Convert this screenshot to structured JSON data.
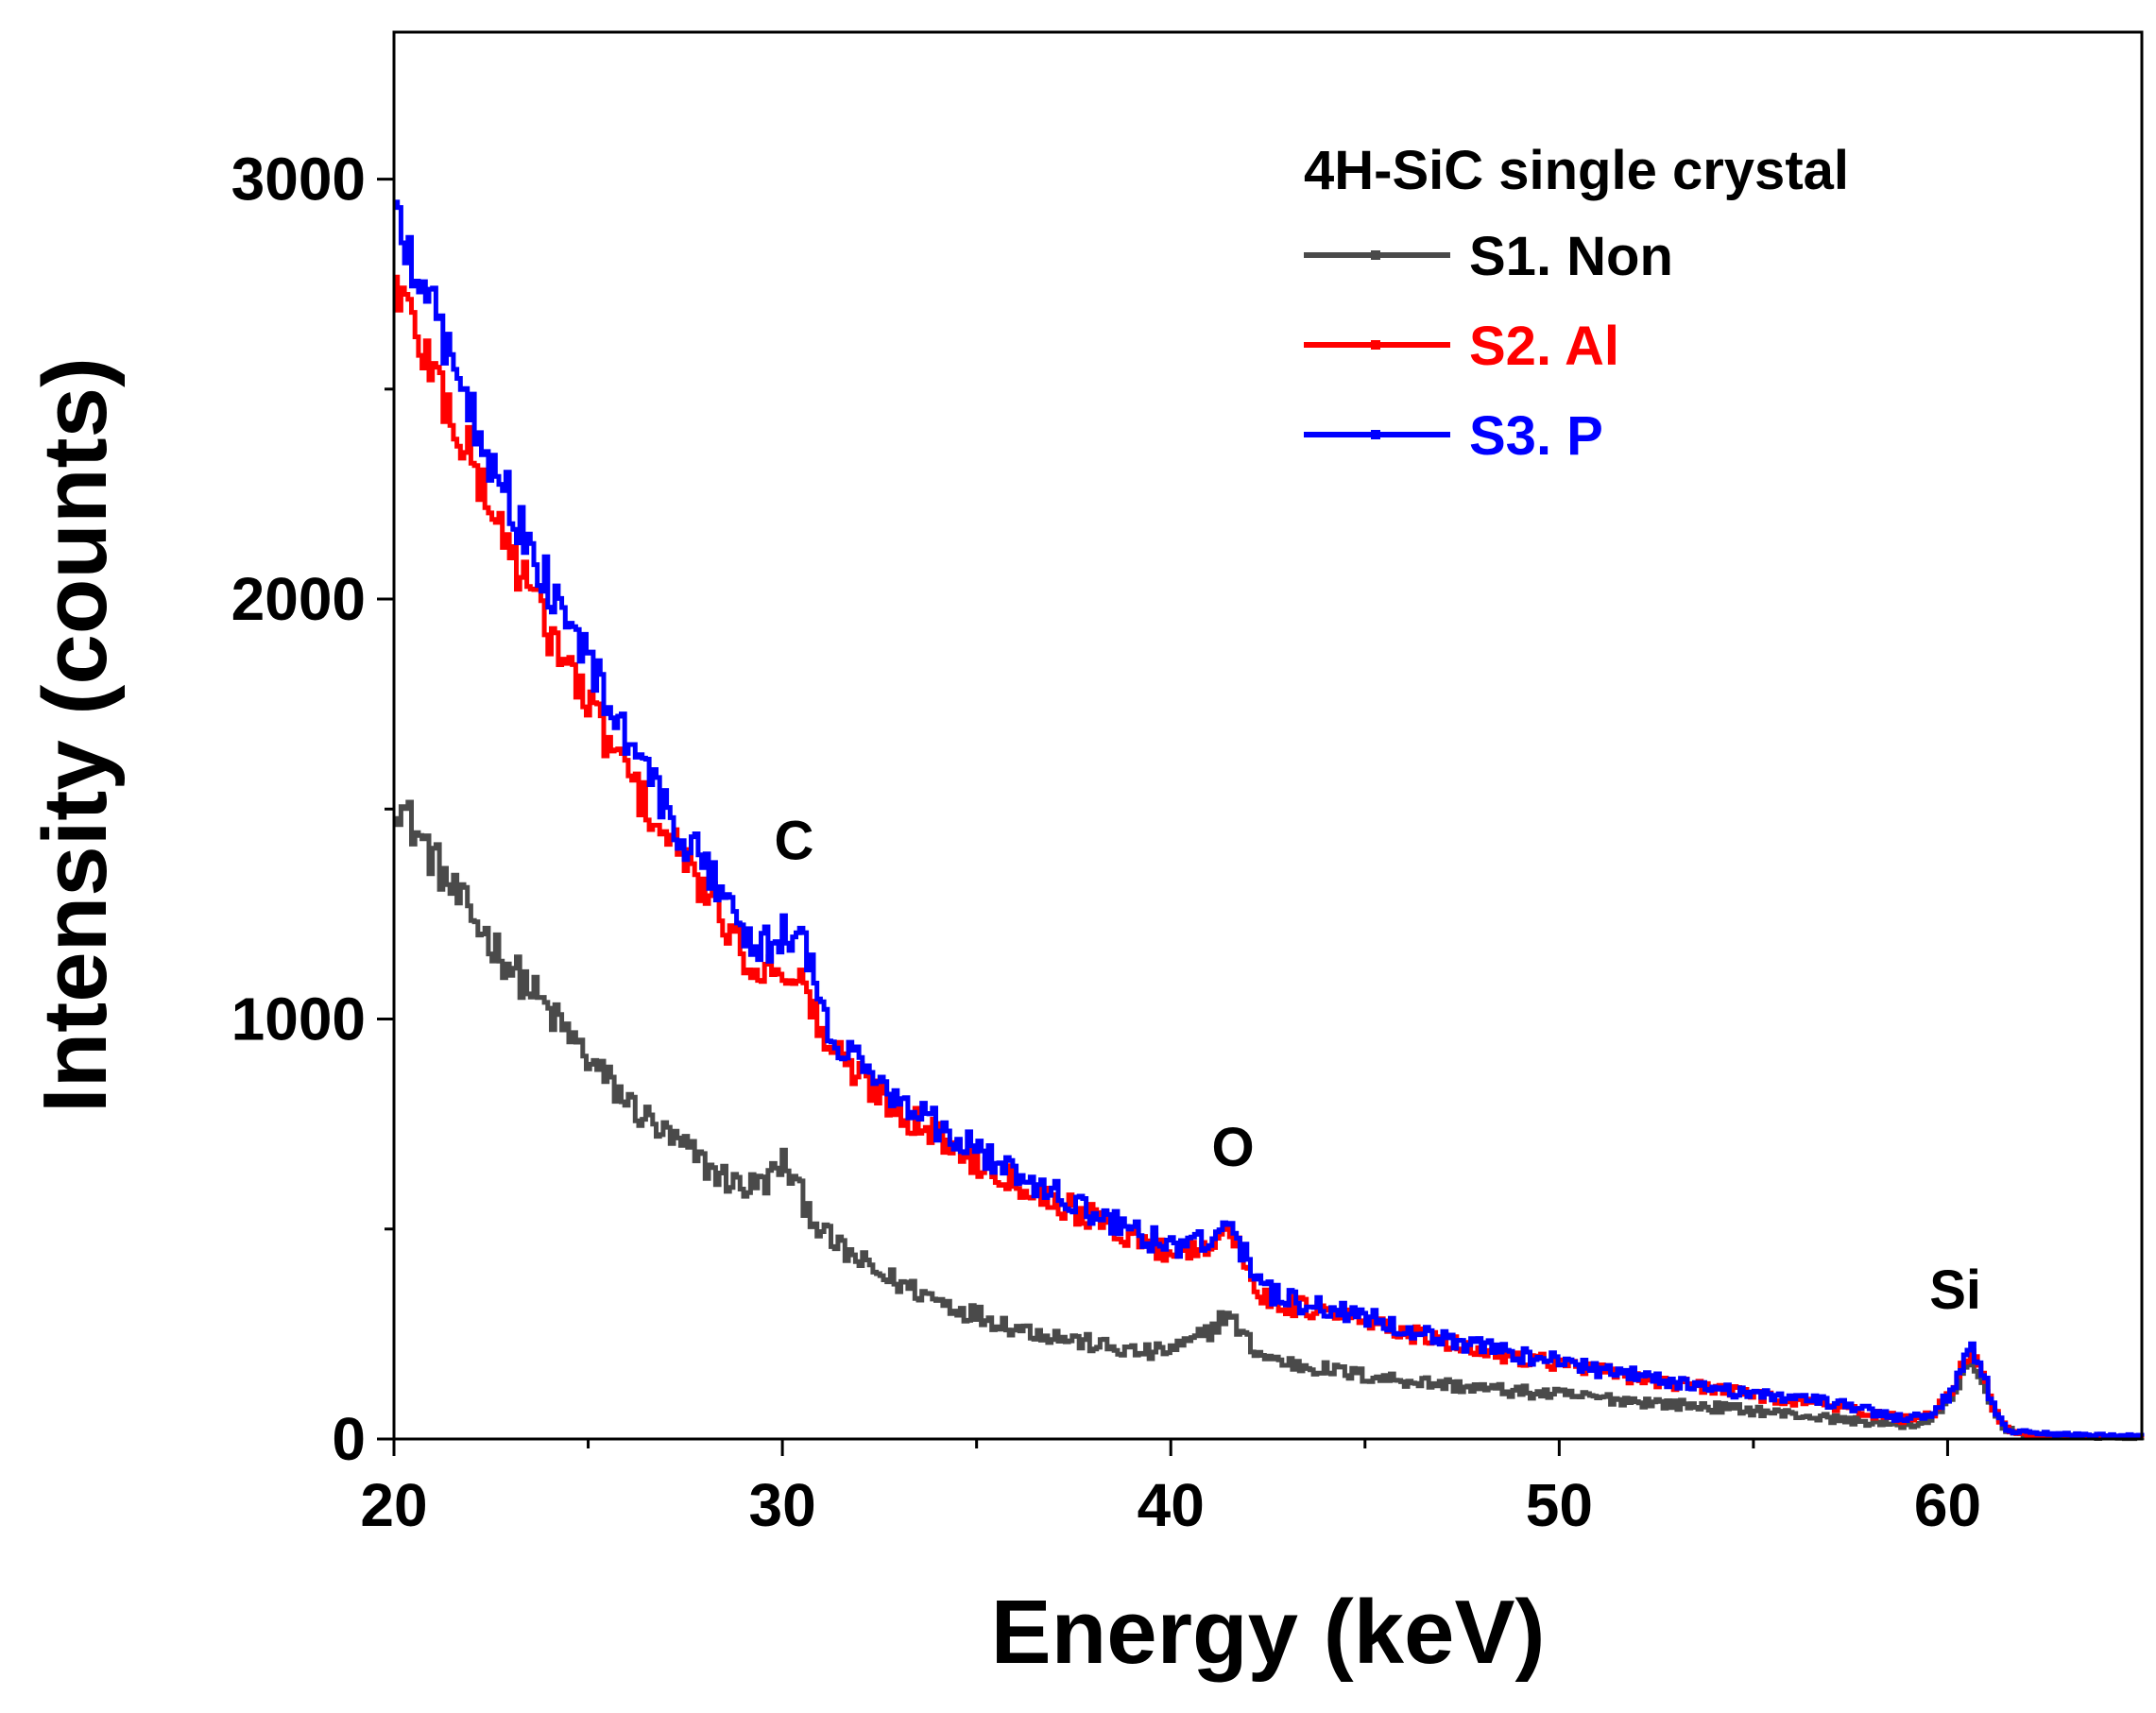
{
  "chart_data": {
    "type": "line",
    "title": "",
    "xlabel": "Energy (keV)",
    "ylabel": "Intensity (counts)",
    "xlim": [
      20,
      65
    ],
    "ylim": [
      0,
      3350
    ],
    "xticks": [
      20,
      30,
      40,
      50,
      60
    ],
    "yticks": [
      0,
      1000,
      2000,
      3000
    ],
    "legend": {
      "title": "4H-SiC single crystal",
      "position": "top-right"
    },
    "annotations": [
      {
        "text": "C",
        "x": 30.3,
        "y": 1380
      },
      {
        "text": "O",
        "x": 41.6,
        "y": 650
      },
      {
        "text": "Si",
        "x": 60.2,
        "y": 310
      }
    ],
    "series": [
      {
        "name": "S1. Non",
        "color": "#4a4a4a",
        "x": [
          20,
          20.5,
          21,
          21.5,
          22,
          22.5,
          23,
          23.5,
          24,
          24.5,
          25,
          25.5,
          26,
          26.5,
          27,
          27.5,
          28,
          28.5,
          29,
          29.5,
          30,
          30.5,
          31,
          31.5,
          32,
          32.5,
          33,
          33.5,
          34,
          34.5,
          35,
          35.5,
          36,
          36.5,
          37,
          37.5,
          38,
          38.5,
          39,
          39.5,
          40,
          40.5,
          41,
          41.4,
          41.8,
          42.2,
          42.6,
          43,
          44,
          45,
          46,
          47,
          48,
          49,
          50,
          51,
          52,
          53,
          54,
          55,
          56,
          57,
          58,
          58.5,
          59,
          59.5,
          60,
          60.3,
          60.6,
          60.9,
          61.2,
          61.5,
          62,
          63,
          64,
          65
        ],
        "y": [
          1530,
          1450,
          1380,
          1300,
          1240,
          1180,
          1120,
          1070,
          1010,
          960,
          900,
          850,
          800,
          760,
          720,
          690,
          650,
          620,
          600,
          610,
          660,
          570,
          490,
          450,
          420,
          390,
          370,
          350,
          330,
          310,
          295,
          280,
          265,
          255,
          245,
          235,
          225,
          215,
          208,
          205,
          215,
          230,
          260,
          300,
          250,
          205,
          190,
          180,
          165,
          150,
          140,
          130,
          120,
          112,
          105,
          98,
          90,
          82,
          75,
          68,
          58,
          48,
          40,
          35,
          32,
          45,
          90,
          150,
          175,
          120,
          55,
          22,
          10,
          5,
          3,
          2
        ]
      },
      {
        "name": "S2. Al",
        "color": "#ff0000",
        "x": [
          20,
          20.5,
          21,
          21.5,
          22,
          22.5,
          23,
          23.5,
          24,
          24.5,
          25,
          25.5,
          26,
          26.5,
          27,
          27.5,
          28,
          28.5,
          29,
          29.5,
          30,
          30.5,
          31,
          31.5,
          32,
          32.5,
          33,
          33.5,
          34,
          34.5,
          35,
          35.5,
          36,
          36.5,
          37,
          37.5,
          38,
          38.5,
          39,
          39.5,
          40,
          40.5,
          41,
          41.4,
          41.8,
          42.2,
          42.6,
          43,
          44,
          45,
          46,
          47,
          48,
          49,
          50,
          51,
          52,
          53,
          54,
          55,
          56,
          57,
          58,
          58.5,
          59,
          59.5,
          60,
          60.3,
          60.6,
          60.9,
          61.2,
          61.5,
          62,
          63,
          64,
          65
        ],
        "y": [
          2760,
          2640,
          2540,
          2420,
          2320,
          2210,
          2110,
          2010,
          1920,
          1830,
          1740,
          1660,
          1580,
          1500,
          1430,
          1370,
          1300,
          1230,
          1150,
          1110,
          1130,
          1080,
          960,
          900,
          860,
          820,
          780,
          750,
          720,
          690,
          660,
          640,
          615,
          590,
          565,
          545,
          525,
          500,
          480,
          460,
          445,
          455,
          470,
          505,
          430,
          350,
          330,
          320,
          300,
          280,
          255,
          230,
          210,
          195,
          180,
          162,
          145,
          130,
          118,
          105,
          92,
          80,
          60,
          52,
          45,
          55,
          100,
          165,
          200,
          140,
          60,
          22,
          12,
          8,
          5,
          6
        ]
      },
      {
        "name": "S3. P",
        "color": "#0000ff",
        "x": [
          20,
          20.5,
          21,
          21.5,
          22,
          22.5,
          23,
          23.5,
          24,
          24.5,
          25,
          25.5,
          26,
          26.5,
          27,
          27.5,
          28,
          28.5,
          29,
          29.5,
          30,
          30.5,
          31,
          31.5,
          32,
          32.5,
          33,
          33.5,
          34,
          34.5,
          35,
          35.5,
          36,
          36.5,
          37,
          37.5,
          38,
          38.5,
          39,
          39.5,
          40,
          40.5,
          41,
          41.4,
          41.8,
          42.2,
          42.6,
          43,
          44,
          45,
          46,
          47,
          48,
          49,
          50,
          51,
          52,
          53,
          54,
          55,
          56,
          57,
          58,
          58.5,
          59,
          59.5,
          60,
          60.3,
          60.6,
          60.9,
          61.2,
          61.5,
          62,
          63,
          64,
          65
        ],
        "y": [
          2900,
          2790,
          2680,
          2560,
          2450,
          2330,
          2220,
          2120,
          2020,
          1930,
          1840,
          1750,
          1660,
          1570,
          1490,
          1420,
          1360,
          1290,
          1210,
          1170,
          1210,
          1180,
          1010,
          940,
          890,
          850,
          815,
          780,
          745,
          715,
          685,
          660,
          635,
          610,
          585,
          560,
          540,
          515,
          495,
          475,
          455,
          465,
          490,
          540,
          450,
          365,
          345,
          330,
          310,
          290,
          265,
          240,
          220,
          200,
          185,
          165,
          150,
          135,
          120,
          108,
          98,
          85,
          65,
          55,
          48,
          58,
          105,
          170,
          215,
          150,
          62,
          24,
          14,
          10,
          8,
          8
        ]
      }
    ]
  }
}
